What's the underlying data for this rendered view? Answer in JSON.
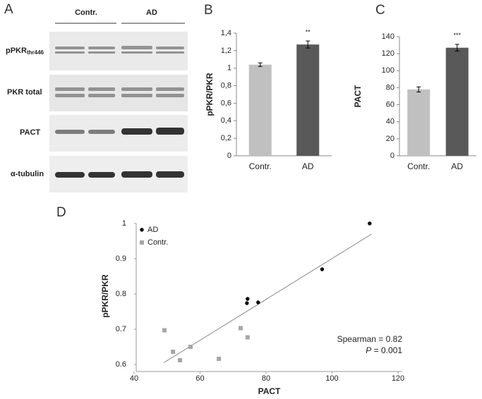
{
  "panels": [
    "A",
    "B",
    "C",
    "D"
  ],
  "blot": {
    "groups": [
      "Contr.",
      "AD"
    ],
    "rows": [
      {
        "label": "pPKR",
        "subscript": "thr446"
      },
      {
        "label": "PKR total"
      },
      {
        "label": "PACT"
      },
      {
        "label": "α-tubulin"
      }
    ]
  },
  "chart_data": [
    {
      "type": "bar",
      "ylabel": "pPKR/PKR",
      "categories": [
        "Contr.",
        "AD"
      ],
      "values": [
        1.04,
        1.27
      ],
      "errors": [
        0.02,
        0.04
      ],
      "colors": [
        "#c0c0c0",
        "#595959"
      ],
      "ylim": [
        0,
        1.4
      ],
      "yticks": [
        0,
        {
          "value": 0.2,
          "label": "0,2"
        },
        {
          "value": 0.4,
          "label": "0,4"
        },
        {
          "value": 0.6,
          "label": "0,6"
        },
        {
          "value": 0.8,
          "label": "0,8"
        },
        1,
        {
          "value": 1.2,
          "label": "1,2"
        },
        {
          "value": 1.4,
          "label": "1,4"
        }
      ],
      "annotations": [
        {
          "x": "AD",
          "text": "**"
        }
      ]
    },
    {
      "type": "bar",
      "ylabel": "PACT",
      "categories": [
        "Contr.",
        "AD"
      ],
      "values": [
        78,
        127
      ],
      "errors": [
        3,
        4
      ],
      "colors": [
        "#c0c0c0",
        "#595959"
      ],
      "ylim": [
        0,
        140
      ],
      "yticks": [
        0,
        20,
        40,
        60,
        80,
        100,
        120,
        140
      ],
      "annotations": [
        {
          "x": "AD",
          "text": "***"
        }
      ]
    },
    {
      "type": "scatter",
      "xlabel": "PACT",
      "ylabel": "pPKR/PKR",
      "xlim": [
        40,
        120
      ],
      "xticks": [
        40,
        60,
        80,
        100,
        120
      ],
      "ylim": [
        0.58,
        1
      ],
      "yticks": [
        0.6,
        0.7,
        0.8,
        0.9,
        1
      ],
      "legend": "upper left",
      "series": [
        {
          "name": "AD",
          "color": "#000000",
          "marker": "circle",
          "x": [
            111.4,
            97,
            74.4,
            74.2,
            77.6
          ],
          "values": [
            1.0,
            0.87,
            0.786,
            0.774,
            0.776
          ]
        },
        {
          "name": "Contr.",
          "color": "#a6a6a6",
          "marker": "square",
          "x": [
            49.2,
            51.8,
            53.9,
            57.1,
            65.7,
            72.3,
            74.4
          ],
          "values": [
            0.697,
            0.636,
            0.612,
            0.65,
            0.616,
            0.703,
            0.677
          ]
        }
      ],
      "trendline": {
        "color": "#888888",
        "x": [
          49,
          112
        ],
        "values": [
          0.605,
          0.97
        ]
      },
      "stats": {
        "text": "Spearman = 0.82",
        "p_symbol": "P",
        "p_text": " = 0.001"
      }
    }
  ]
}
